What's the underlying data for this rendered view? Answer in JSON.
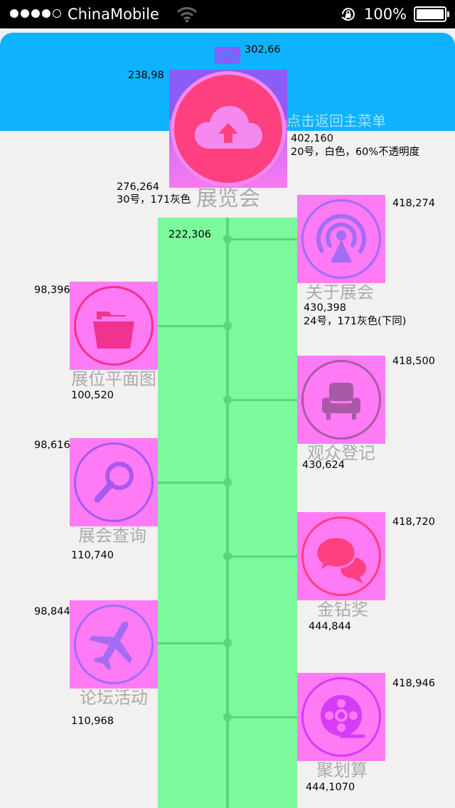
{
  "status_bar": {
    "carrier": "ChinaMobile",
    "battery": "100%",
    "signal_bars_filled": 4,
    "signal_bars_total": 5
  },
  "colors": {
    "header": "#0fb2fe",
    "trunk": "#7cf99b",
    "trunk_line": "#57d680",
    "tile": "#fe7bf5",
    "top_tile": "#8b5cf6",
    "label_gray": "#ababab"
  },
  "top": {
    "chevron_icon": "chevron-up-icon",
    "main_icon": "cloud-upload-icon",
    "back_label": "点击返回主菜单",
    "title": "展览会"
  },
  "annotations": {
    "chevron_pos": "302,66",
    "top_tile_pos": "238,98",
    "back_label_pos": "402,160",
    "back_label_style": "20号，白色，60%不透明度",
    "title_pos": "276,264",
    "title_style": "30号，171灰色",
    "trunk_pos": "222,306",
    "about_tile_pos": "418,274",
    "about_label_pos": "430,398",
    "about_label_style": "24号，171灰色(下同)",
    "floorplan_tile_pos": "98,396",
    "floorplan_label_pos": "100,520",
    "visitor_tile_pos": "418,500",
    "visitor_label_pos": "430,624",
    "search_tile_pos": "98,616",
    "search_label_pos": "110,740",
    "award_tile_pos": "418,720",
    "award_label_pos": "444,844",
    "forum_tile_pos": "98,844",
    "forum_label_pos": "110,968",
    "deal_tile_pos": "418,946",
    "deal_label_pos": "444,1070"
  },
  "menu": [
    {
      "id": "about",
      "label": "关于展会",
      "icon": "podcast-icon",
      "ring": "#a46cf5"
    },
    {
      "id": "floorplan",
      "label": "展位平面图",
      "icon": "folder-icon",
      "ring": "#f0338f"
    },
    {
      "id": "visitor",
      "label": "观众登记",
      "icon": "armchair-icon",
      "ring": "#a85ba4"
    },
    {
      "id": "search",
      "label": "展会查询",
      "icon": "search-icon",
      "ring": "#a858f0"
    },
    {
      "id": "award",
      "label": "金钻奖",
      "icon": "chat-bubbles-icon",
      "ring": "#fe4080"
    },
    {
      "id": "forum",
      "label": "论坛活动",
      "icon": "airplane-icon",
      "ring": "#a46cf5"
    },
    {
      "id": "deal",
      "label": "聚划算",
      "icon": "film-reel-icon",
      "ring": "#d63cf5"
    }
  ]
}
